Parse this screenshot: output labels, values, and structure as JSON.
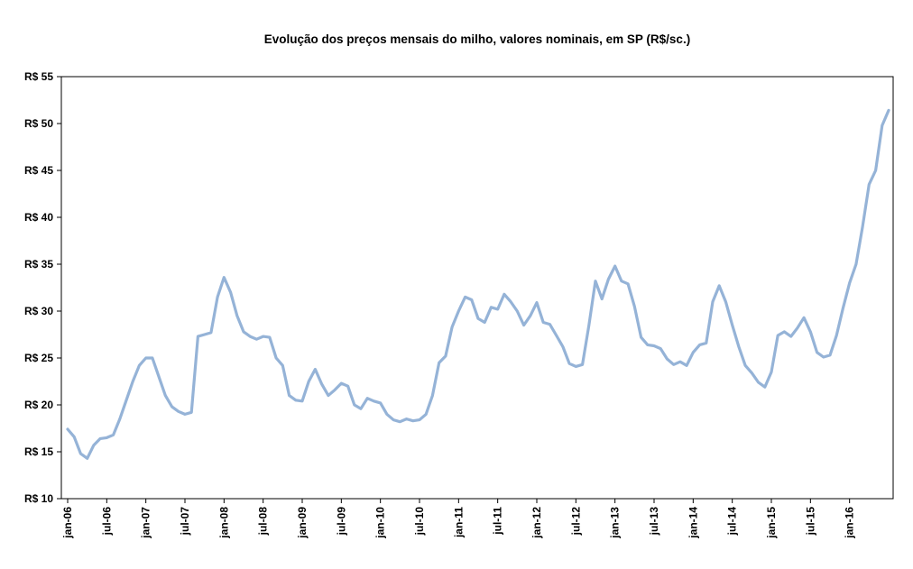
{
  "chart_data": {
    "type": "line",
    "title": "Evolução dos preços mensais do milho, valores nominais, em SP (R$/sc.)",
    "xlabel": "",
    "ylabel": "",
    "x_start_month": "jan-06",
    "x_end_month": "jul-16",
    "x_tick_interval_months": 6,
    "x_tick_labels": [
      "jan-06",
      "jul-06",
      "jan-07",
      "jul-07",
      "jan-08",
      "jul-08",
      "jan-09",
      "jul-09",
      "jan-10",
      "jul-10",
      "jan-11",
      "jul-11",
      "jan-12",
      "jul-12",
      "jan-13",
      "jul-13",
      "jan-14",
      "jul-14",
      "jan-15",
      "jul-15",
      "jan-16"
    ],
    "ylabel_prefix": "R$ ",
    "ylim": [
      10,
      55
    ],
    "y_tick_step": 5,
    "grid": false,
    "legend": "none",
    "line_color": "#95B3D7",
    "axis_color": "#000000",
    "background": "#FFFFFF",
    "values": [
      17.4,
      16.6,
      14.8,
      14.3,
      15.7,
      16.4,
      16.5,
      16.8,
      18.5,
      20.5,
      22.5,
      24.2,
      25.0,
      25.0,
      23.0,
      21.0,
      19.8,
      19.3,
      19.0,
      19.2,
      27.3,
      27.5,
      27.7,
      31.5,
      33.6,
      32.0,
      29.5,
      27.8,
      27.3,
      27.0,
      27.3,
      27.2,
      25.0,
      24.2,
      21.0,
      20.5,
      20.4,
      22.5,
      23.8,
      22.2,
      21.0,
      21.6,
      22.3,
      22.0,
      20.0,
      19.6,
      20.7,
      20.4,
      20.2,
      19.0,
      18.4,
      18.2,
      18.5,
      18.3,
      18.4,
      19.0,
      21.0,
      24.5,
      25.2,
      28.3,
      30.0,
      31.5,
      31.2,
      29.2,
      28.8,
      30.4,
      30.2,
      31.8,
      31.0,
      30.0,
      28.5,
      29.5,
      30.9,
      28.8,
      28.6,
      27.4,
      26.2,
      24.4,
      24.1,
      24.3,
      28.5,
      33.2,
      31.3,
      33.4,
      34.8,
      33.2,
      32.9,
      30.5,
      27.2,
      26.4,
      26.3,
      26.0,
      24.9,
      24.3,
      24.6,
      24.2,
      25.6,
      26.4,
      26.6,
      31.0,
      32.7,
      31.0,
      28.5,
      26.2,
      24.2,
      23.4,
      22.4,
      21.9,
      23.5,
      27.4,
      27.8,
      27.3,
      28.2,
      29.3,
      27.8,
      25.6,
      25.1,
      25.3,
      27.4,
      30.3,
      33.0,
      35.0,
      39.0,
      43.5,
      45.0,
      49.8,
      51.4
    ]
  }
}
